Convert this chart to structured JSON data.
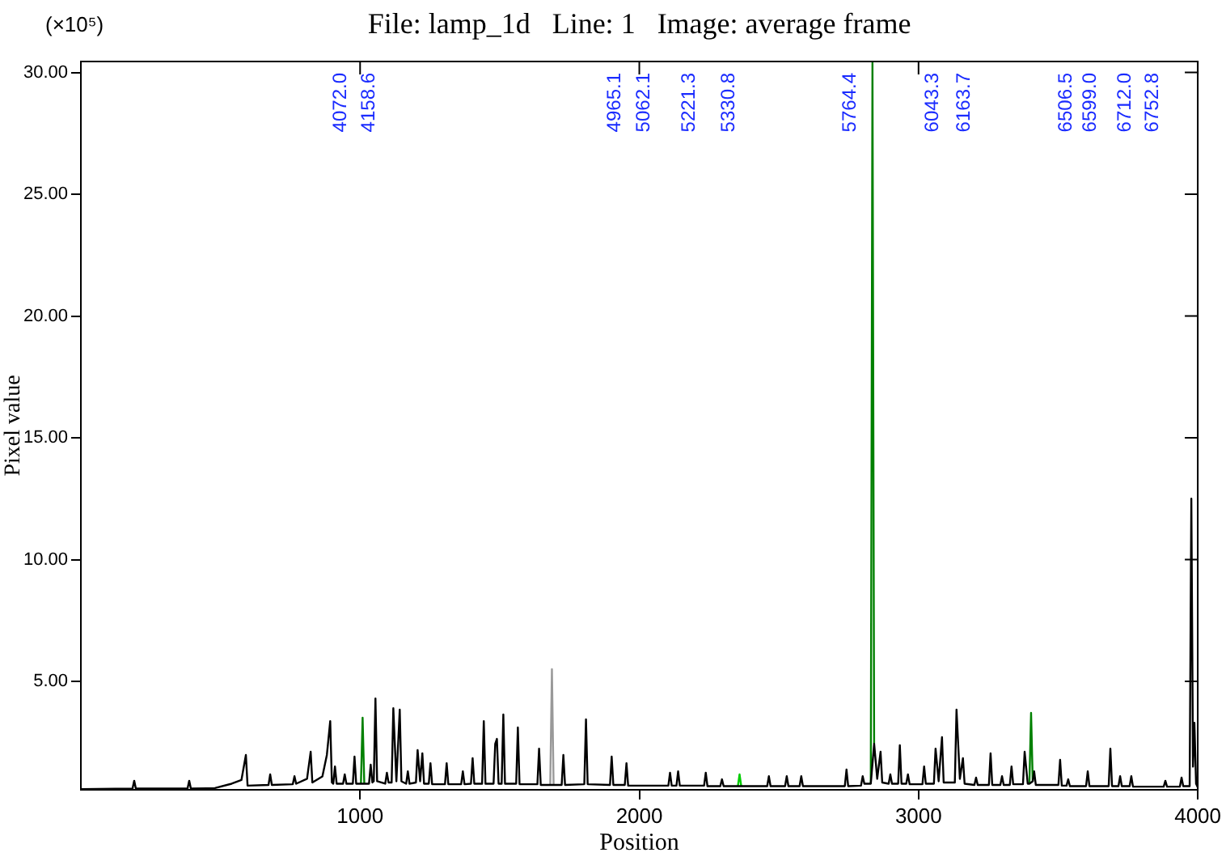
{
  "chart_data": {
    "type": "line",
    "title": "File: lamp_1d   Line: 1   Image: average frame",
    "xlabel": "Position",
    "ylabel": "Pixel value",
    "annotations": [
      "(×10⁵)",
      "4072.0",
      "4158.6",
      "4965.1",
      "5062.1",
      "5221.3",
      "5330.8",
      "5764.4",
      "6043.3",
      "6163.7",
      "6506.5",
      "6599.0",
      "6712.0",
      "6752.8"
    ],
    "xlim": [
      0,
      4000
    ],
    "xticks": [
      1000,
      2000,
      3000,
      4000
    ],
    "ylim": [
      0.55,
      30.45
    ],
    "yticks": [
      {
        "value": 5,
        "label": "5.00"
      },
      {
        "value": 10,
        "label": "10.00"
      },
      {
        "value": 15,
        "label": "15.00"
      },
      {
        "value": 20,
        "label": "20.00"
      },
      {
        "value": 25,
        "label": "25.00"
      },
      {
        "value": 30,
        "label": "30.00"
      }
    ],
    "grid": false,
    "legend": false,
    "marker": "none",
    "line_style": "solid",
    "series": [
      {
        "color": "#000000",
        "x": [
          1,
          185,
          191,
          197,
          382,
          388,
          394,
          480,
          540,
          575,
          591,
          597,
          672,
          678,
          684,
          759,
          765,
          771,
          810,
          823,
          829,
          865,
          881,
          893,
          899,
          904,
          910,
          916,
          939,
          945,
          951,
          974,
          980,
          986,
          1003,
          1015,
          1032,
          1038,
          1044,
          1049,
          1055,
          1061,
          1090,
          1096,
          1102,
          1113,
          1119,
          1130,
          1142,
          1148,
          1165,
          1171,
          1177,
          1200,
          1206,
          1215,
          1223,
          1229,
          1246,
          1252,
          1258,
          1304,
          1310,
          1316,
          1362,
          1368,
          1374,
          1397,
          1403,
          1409,
          1437,
          1443,
          1449,
          1478,
          1484,
          1490,
          1496,
          1507,
          1513,
          1519,
          1559,
          1565,
          1571,
          1635,
          1641,
          1647,
          1681,
          1693,
          1722,
          1728,
          1734,
          1803,
          1809,
          1815,
          1895,
          1901,
          1907,
          1948,
          1954,
          1960,
          2104,
          2110,
          2116,
          2133,
          2139,
          2145,
          2232,
          2238,
          2244,
          2290,
          2296,
          2302,
          2353,
          2365,
          2458,
          2464,
          2470,
          2522,
          2528,
          2534,
          2574,
          2580,
          2586,
          2736,
          2742,
          2748,
          2794,
          2800,
          2806,
          2829,
          2841,
          2852,
          2864,
          2870,
          2893,
          2899,
          2905,
          2927,
          2933,
          2939,
          2956,
          2962,
          2968,
          3014,
          3020,
          3026,
          3055,
          3061,
          3072,
          3084,
          3090,
          3130,
          3136,
          3148,
          3159,
          3165,
          3200,
          3206,
          3212,
          3252,
          3258,
          3264,
          3293,
          3299,
          3305,
          3327,
          3333,
          3339,
          3374,
          3380,
          3391,
          3397,
          3409,
          3414,
          3420,
          3501,
          3507,
          3513,
          3530,
          3536,
          3542,
          3600,
          3606,
          3612,
          3681,
          3687,
          3693,
          3716,
          3722,
          3728,
          3756,
          3762,
          3768,
          3878,
          3884,
          3890,
          3936,
          3942,
          3948,
          3971,
          3977,
          3983,
          3988,
          3994,
          4000
        ],
        "values": [
          0.58,
          0.6,
          0.92,
          0.6,
          0.6,
          0.92,
          0.6,
          0.62,
          0.8,
          0.95,
          1.98,
          0.72,
          0.75,
          1.18,
          0.75,
          0.78,
          1.11,
          0.8,
          1.0,
          2.11,
          0.85,
          1.1,
          1.98,
          3.37,
          0.85,
          0.8,
          1.51,
          0.8,
          0.8,
          1.18,
          0.8,
          0.8,
          1.91,
          0.8,
          0.8,
          0.8,
          0.8,
          1.58,
          0.85,
          0.9,
          4.3,
          0.9,
          0.8,
          1.25,
          0.85,
          0.85,
          3.9,
          0.9,
          3.84,
          0.9,
          0.8,
          1.31,
          0.8,
          0.85,
          2.18,
          0.9,
          2.05,
          0.8,
          0.8,
          1.64,
          0.78,
          0.78,
          1.64,
          0.78,
          0.78,
          1.31,
          0.78,
          0.8,
          1.85,
          0.8,
          0.8,
          3.37,
          0.8,
          0.8,
          2.44,
          2.64,
          0.8,
          0.8,
          3.64,
          0.8,
          0.8,
          3.11,
          0.78,
          0.78,
          2.24,
          0.75,
          0.75,
          0.75,
          0.75,
          1.98,
          0.75,
          0.78,
          3.44,
          0.78,
          0.75,
          1.91,
          0.75,
          0.75,
          1.64,
          0.72,
          0.72,
          1.25,
          0.72,
          0.72,
          1.31,
          0.72,
          0.72,
          1.25,
          0.7,
          0.7,
          0.98,
          0.7,
          0.7,
          0.7,
          0.7,
          1.11,
          0.7,
          0.7,
          1.11,
          0.7,
          0.7,
          1.11,
          0.7,
          0.7,
          1.38,
          0.7,
          0.72,
          1.11,
          0.8,
          0.8,
          2.44,
          1.0,
          2.11,
          0.85,
          0.8,
          1.18,
          0.8,
          0.8,
          2.38,
          0.8,
          0.8,
          1.18,
          0.78,
          0.78,
          1.51,
          0.8,
          0.8,
          2.24,
          0.9,
          2.71,
          0.85,
          0.85,
          3.84,
          1.0,
          1.85,
          0.8,
          0.75,
          1.05,
          0.75,
          0.75,
          2.05,
          0.75,
          0.75,
          1.11,
          0.75,
          0.75,
          1.51,
          0.78,
          0.78,
          2.11,
          0.8,
          0.8,
          0.9,
          1.31,
          0.75,
          0.75,
          1.78,
          0.72,
          0.72,
          0.98,
          0.7,
          0.7,
          1.31,
          0.7,
          0.7,
          2.24,
          0.7,
          0.7,
          1.11,
          0.7,
          0.7,
          1.11,
          0.68,
          0.68,
          0.92,
          0.68,
          0.68,
          1.05,
          0.7,
          0.7,
          12.5,
          1.5,
          3.3,
          0.8,
          0.65
        ]
      },
      {
        "color": "#008000",
        "x": [
          1003,
          1009,
          1015
        ],
        "values": [
          0.8,
          3.51,
          0.8
        ]
      },
      {
        "color": "#999999",
        "x": [
          1681,
          1687,
          1693
        ],
        "values": [
          0.75,
          5.5,
          0.75
        ]
      },
      {
        "color": "#00cc00",
        "x": [
          2353,
          2359,
          2365
        ],
        "values": [
          0.7,
          1.18,
          0.7
        ]
      },
      {
        "color": "#008000",
        "x": [
          2829,
          2835,
          2841
        ],
        "values": [
          0.8,
          30.4,
          2.44
        ]
      },
      {
        "color": "#008000",
        "x": [
          3397,
          3403,
          3409
        ],
        "values": [
          0.8,
          3.71,
          0.9
        ]
      }
    ]
  }
}
